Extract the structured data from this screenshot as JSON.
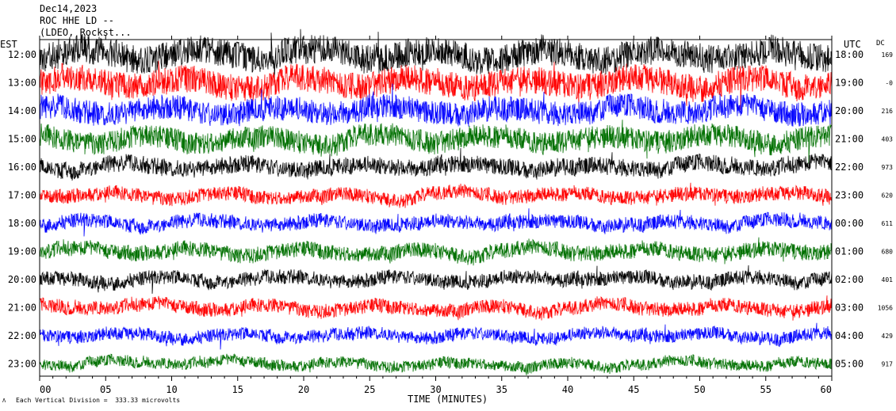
{
  "header": {
    "date": "Dec14,2023",
    "station": "ROC HHE LD --",
    "location": "(LDEO, Rockst..."
  },
  "chart_data": {
    "type": "line",
    "title": "",
    "xlabel": "TIME (MINUTES)",
    "ylabel_left": "EST",
    "ylabel_right": "UTC",
    "dc_label": "DC",
    "xlim": [
      0,
      60
    ],
    "x_ticks": [
      "00",
      "05",
      "10",
      "15",
      "20",
      "25",
      "30",
      "35",
      "40",
      "45",
      "50",
      "55",
      "60"
    ],
    "left_hours": [
      "12:00",
      "13:00",
      "14:00",
      "15:00",
      "16:00",
      "17:00",
      "18:00",
      "19:00",
      "20:00",
      "21:00",
      "22:00",
      "23:00"
    ],
    "right_hours": [
      "18:00",
      "19:00",
      "20:00",
      "21:00",
      "22:00",
      "23:00",
      "00:00",
      "01:00",
      "02:00",
      "03:00",
      "04:00",
      "05:00"
    ],
    "dc_values": [
      "169",
      "-0",
      "216",
      "403",
      "973",
      "620",
      "611",
      "680",
      "401",
      "1056",
      "429",
      "917"
    ],
    "trace_colors": [
      "#000000",
      "#ff0000",
      "#0000ff",
      "#007000"
    ],
    "trace_amplitude_divisions": [
      2.0,
      1.9,
      1.7,
      1.6,
      1.2,
      1.0,
      1.0,
      1.1,
      1.0,
      1.0,
      0.9,
      0.8
    ],
    "scale_note": "Each Vertical Division =  333.33 microvolts"
  }
}
